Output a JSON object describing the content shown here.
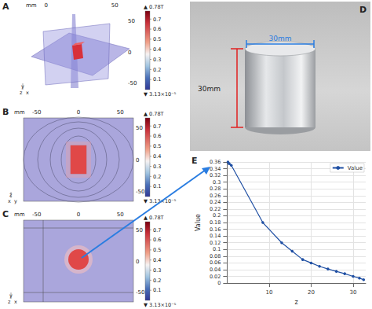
{
  "panels": [
    {
      "label": "A",
      "unit": "mm",
      "top_ticks": [
        0,
        50
      ],
      "side_ticks": [
        50,
        0,
        -50
      ],
      "triad": [
        "y",
        "z",
        "x"
      ]
    },
    {
      "label": "B",
      "unit": "mm",
      "top_ticks": [
        -50,
        0,
        50
      ],
      "side_ticks": [
        50,
        0,
        -50
      ],
      "triad": [
        "z",
        "x",
        "y"
      ]
    },
    {
      "label": "C",
      "unit": "mm",
      "top_ticks": [
        -50,
        0,
        50
      ],
      "side_ticks": [
        50,
        0,
        -50
      ],
      "triad": [
        "y",
        "z",
        "x"
      ]
    }
  ],
  "colorbar": {
    "range": [
      3.13e-05,
      0.78
    ],
    "ticks": [
      0.7,
      0.6,
      0.5,
      0.4,
      0.3,
      0.2,
      0.1
    ],
    "max_label": "▲ 0.78T",
    "min_label": "▼ 3.13×10⁻⁵"
  },
  "photo": {
    "label": "D",
    "diameter_label": "30mm",
    "height_label": "30mm"
  },
  "panel_e": {
    "label": "E"
  },
  "chart_data": {
    "type": "line",
    "x_label": "z",
    "y_label": "Value",
    "series": [
      {
        "name": "Value",
        "color": "#1f4fa3",
        "marker": "circle",
        "x": [
          0.2,
          0.5,
          1,
          8.5,
          13,
          15.5,
          18,
          20,
          22,
          24,
          26,
          28,
          30,
          31.5,
          32.5
        ],
        "values": [
          0.36,
          0.355,
          0.35,
          0.18,
          0.12,
          0.095,
          0.07,
          0.06,
          0.05,
          0.042,
          0.035,
          0.028,
          0.02,
          0.015,
          0.01
        ]
      }
    ],
    "xlim": [
      0,
      33
    ],
    "xticks": [
      10,
      20,
      30
    ],
    "ylim": [
      0,
      0.36
    ],
    "yticks": [
      0,
      0.02,
      0.04,
      0.06,
      0.08,
      0.1,
      0.12,
      0.14,
      0.16,
      0.18,
      0.2,
      0.22,
      0.24,
      0.26,
      0.28,
      0.3,
      0.32,
      0.34,
      0.36
    ],
    "grid": true,
    "legend": "upper right"
  }
}
